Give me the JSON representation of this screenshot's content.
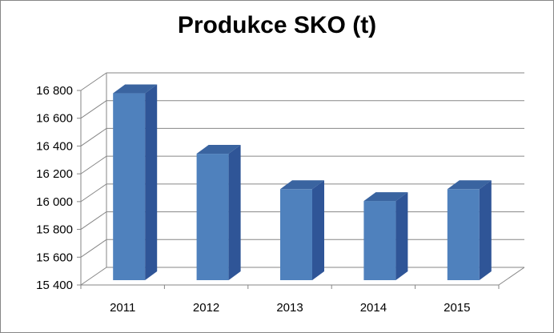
{
  "chart_data": {
    "type": "bar",
    "title": "Produkce SKO (t)",
    "categories": [
      "2011",
      "2012",
      "2013",
      "2014",
      "2015"
    ],
    "values": [
      16745,
      16310,
      16055,
      15970,
      16055
    ],
    "xlabel": "",
    "ylabel": "",
    "ylim": [
      15400,
      16800
    ],
    "yticks": [
      15400,
      15600,
      15800,
      16000,
      16200,
      16400,
      16600,
      16800
    ],
    "ytick_labels": [
      "15 400",
      "15 600",
      "15 800",
      "16 000",
      "16 200",
      "16 400",
      "16 600",
      "16 800"
    ],
    "grid": true,
    "legend": "none",
    "colors": {
      "bar_front": "#4f81bd",
      "bar_side": "#2f5597",
      "bar_top": "#3a64a0",
      "gridline": "#868686"
    }
  }
}
